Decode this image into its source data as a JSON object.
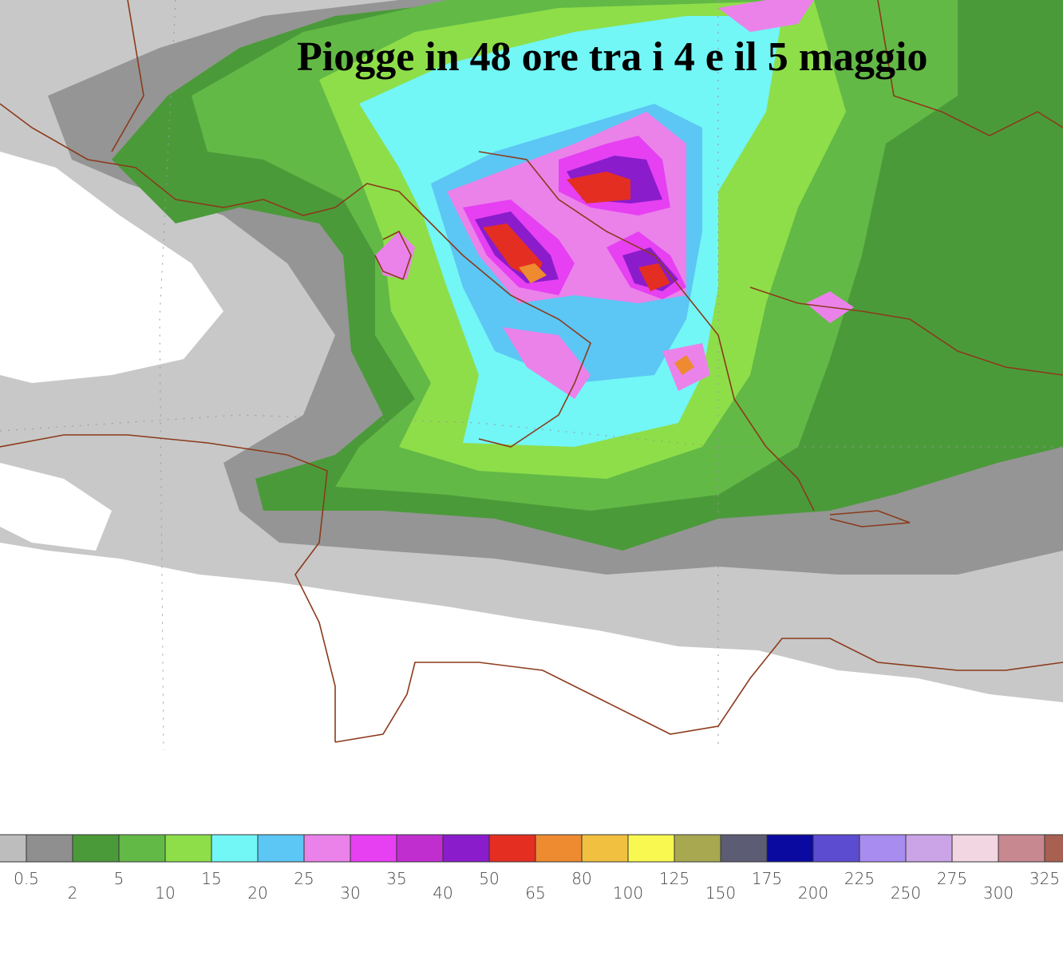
{
  "title": "Piogge in 48 ore tra i 4 e il 5 maggio",
  "legend": {
    "colors": [
      "#bdbdbd",
      "#8f8f8f",
      "#4b9a3a",
      "#63b946",
      "#8ede4a",
      "#72f6f6",
      "#5cc6f4",
      "#ea82ea",
      "#e640f2",
      "#c02ed0",
      "#8a1ccc",
      "#e42e22",
      "#ee8a30",
      "#f2c040",
      "#f8f850",
      "#a8a850",
      "#5c5c74",
      "#0a0aa0",
      "#5c4cd0",
      "#a88cf0",
      "#caa4e6",
      "#f2d6e2",
      "#c88890",
      "#a86050"
    ],
    "labels": [
      "0.5",
      "2",
      "5",
      "10",
      "15",
      "20",
      "25",
      "30",
      "35",
      "40",
      "50",
      "65",
      "80",
      "100",
      "125",
      "150",
      "175",
      "200",
      "225",
      "250",
      "275",
      "300",
      "325"
    ]
  }
}
